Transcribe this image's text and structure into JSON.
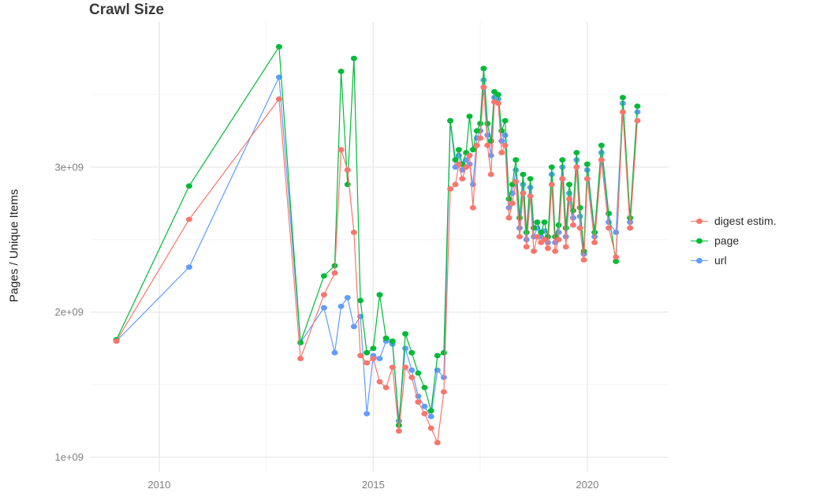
{
  "title": "Crawl Size",
  "ylabel": "Pages / Unique Items",
  "legend": {
    "items": [
      {
        "label": "digest estim.",
        "color": "#F8766D"
      },
      {
        "label": "page",
        "color": "#00BA38"
      },
      {
        "label": "url",
        "color": "#619CFF"
      }
    ]
  },
  "chart_data": {
    "type": "line",
    "title": "Crawl Size",
    "xlabel": "",
    "ylabel": "Pages / Unique Items",
    "grid": true,
    "legend_position": "right",
    "xlim": [
      2008.4,
      2021.9
    ],
    "ylim": [
      0.9,
      4.0
    ],
    "y_unit_scale": 1000000000.0,
    "x_ticks": [
      {
        "value": 2010,
        "label": "2010"
      },
      {
        "value": 2015,
        "label": "2015"
      },
      {
        "value": 2020,
        "label": "2020"
      }
    ],
    "y_ticks": [
      {
        "value": 1,
        "label": "1e+09"
      },
      {
        "value": 2,
        "label": "2e+09"
      },
      {
        "value": 3,
        "label": "3e+09"
      }
    ],
    "x_minor": [
      2012.5,
      2017.5
    ],
    "y_minor": [
      1.5,
      2.5,
      3.5
    ],
    "draw_order": [
      "url",
      "page",
      "digest estim."
    ],
    "x": [
      2009.0,
      2010.7,
      2012.8,
      2013.3,
      2013.85,
      2014.1,
      2014.25,
      2014.4,
      2014.55,
      2014.7,
      2014.85,
      2015.0,
      2015.15,
      2015.3,
      2015.45,
      2015.6,
      2015.75,
      2015.9,
      2016.05,
      2016.2,
      2016.35,
      2016.5,
      2016.65,
      2016.8,
      2016.92,
      2017.0,
      2017.08,
      2017.17,
      2017.25,
      2017.33,
      2017.42,
      2017.5,
      2017.58,
      2017.67,
      2017.75,
      2017.83,
      2017.92,
      2018.0,
      2018.08,
      2018.17,
      2018.25,
      2018.33,
      2018.42,
      2018.5,
      2018.58,
      2018.67,
      2018.75,
      2018.83,
      2018.92,
      2019.0,
      2019.08,
      2019.17,
      2019.25,
      2019.33,
      2019.42,
      2019.5,
      2019.58,
      2019.67,
      2019.75,
      2019.83,
      2019.92,
      2020.0,
      2020.17,
      2020.33,
      2020.5,
      2020.67,
      2020.83,
      2021.0,
      2021.17
    ],
    "series": [
      {
        "name": "digest estim.",
        "color": "#F8766D",
        "values": [
          1.8,
          2.64,
          3.47,
          1.68,
          2.12,
          2.27,
          3.12,
          2.98,
          2.55,
          1.7,
          1.65,
          1.68,
          1.52,
          1.48,
          1.62,
          1.18,
          1.62,
          1.55,
          1.38,
          1.3,
          1.2,
          1.1,
          1.45,
          2.85,
          2.88,
          3.02,
          2.92,
          3.0,
          3.08,
          2.72,
          3.15,
          3.2,
          3.55,
          3.15,
          2.95,
          3.45,
          3.44,
          3.1,
          3.15,
          2.65,
          2.75,
          2.9,
          2.52,
          2.82,
          2.45,
          2.8,
          2.42,
          2.52,
          2.48,
          2.5,
          2.44,
          2.88,
          2.42,
          2.5,
          2.92,
          2.45,
          2.78,
          2.6,
          3.0,
          2.58,
          2.36,
          2.92,
          2.48,
          3.05,
          2.58,
          2.38,
          3.38,
          2.58,
          3.32
        ]
      },
      {
        "name": "page",
        "color": "#00BA38",
        "values": [
          1.81,
          2.87,
          3.83,
          1.79,
          2.25,
          2.32,
          3.66,
          2.88,
          3.75,
          2.08,
          1.72,
          1.75,
          2.12,
          1.82,
          1.8,
          1.22,
          1.85,
          1.72,
          1.58,
          1.48,
          1.32,
          1.7,
          1.72,
          3.32,
          3.05,
          3.12,
          3.02,
          3.1,
          3.35,
          3.12,
          3.25,
          3.3,
          3.68,
          3.3,
          3.18,
          3.52,
          3.5,
          3.25,
          3.32,
          2.78,
          2.88,
          3.05,
          2.65,
          2.95,
          2.55,
          2.92,
          2.58,
          2.62,
          2.55,
          2.62,
          2.52,
          3.0,
          2.52,
          2.6,
          3.05,
          2.58,
          2.88,
          2.7,
          3.1,
          2.72,
          2.42,
          3.02,
          2.55,
          3.15,
          2.68,
          2.35,
          3.48,
          2.65,
          3.42
        ]
      },
      {
        "name": "url",
        "color": "#619CFF",
        "values": [
          1.8,
          2.31,
          3.62,
          1.79,
          2.03,
          1.72,
          2.04,
          2.1,
          1.9,
          1.97,
          1.3,
          1.7,
          1.68,
          1.8,
          1.78,
          1.25,
          1.75,
          1.6,
          1.42,
          1.35,
          1.28,
          1.6,
          1.55,
          3.32,
          3.0,
          3.08,
          2.98,
          3.05,
          3.02,
          2.88,
          3.2,
          3.25,
          3.6,
          3.22,
          3.08,
          3.48,
          3.47,
          3.18,
          3.22,
          2.72,
          2.82,
          2.98,
          2.58,
          2.88,
          2.5,
          2.86,
          2.52,
          2.58,
          2.52,
          2.56,
          2.48,
          2.95,
          2.48,
          2.55,
          3.0,
          2.52,
          2.82,
          2.65,
          3.05,
          2.66,
          2.4,
          2.98,
          2.52,
          3.1,
          2.62,
          2.55,
          3.44,
          2.62,
          3.38
        ]
      }
    ]
  }
}
